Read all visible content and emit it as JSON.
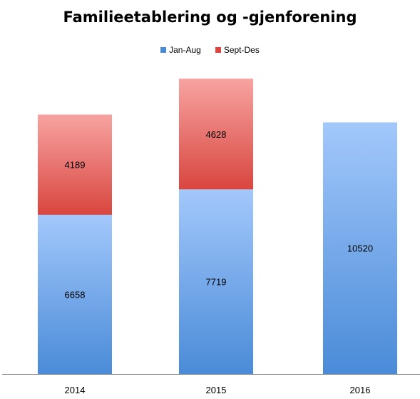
{
  "chart_data": {
    "type": "bar",
    "stacked": true,
    "title": "Familieetablering og -gjenforening",
    "xlabel": "",
    "ylabel": "",
    "categories": [
      "2014",
      "2015",
      "2016"
    ],
    "series": [
      {
        "name": "Jan-Aug",
        "values": [
          6658,
          7719,
          10520
        ],
        "color_top": "#a3c8fb",
        "color_bottom": "#4a8bd8"
      },
      {
        "name": "Sept-Des",
        "values": [
          4189,
          4628,
          null
        ],
        "color_top": "#f7a3a1",
        "color_bottom": "#d9463f"
      }
    ],
    "ylim": [
      0,
      13100
    ],
    "grid": false,
    "legend_position": "top"
  }
}
